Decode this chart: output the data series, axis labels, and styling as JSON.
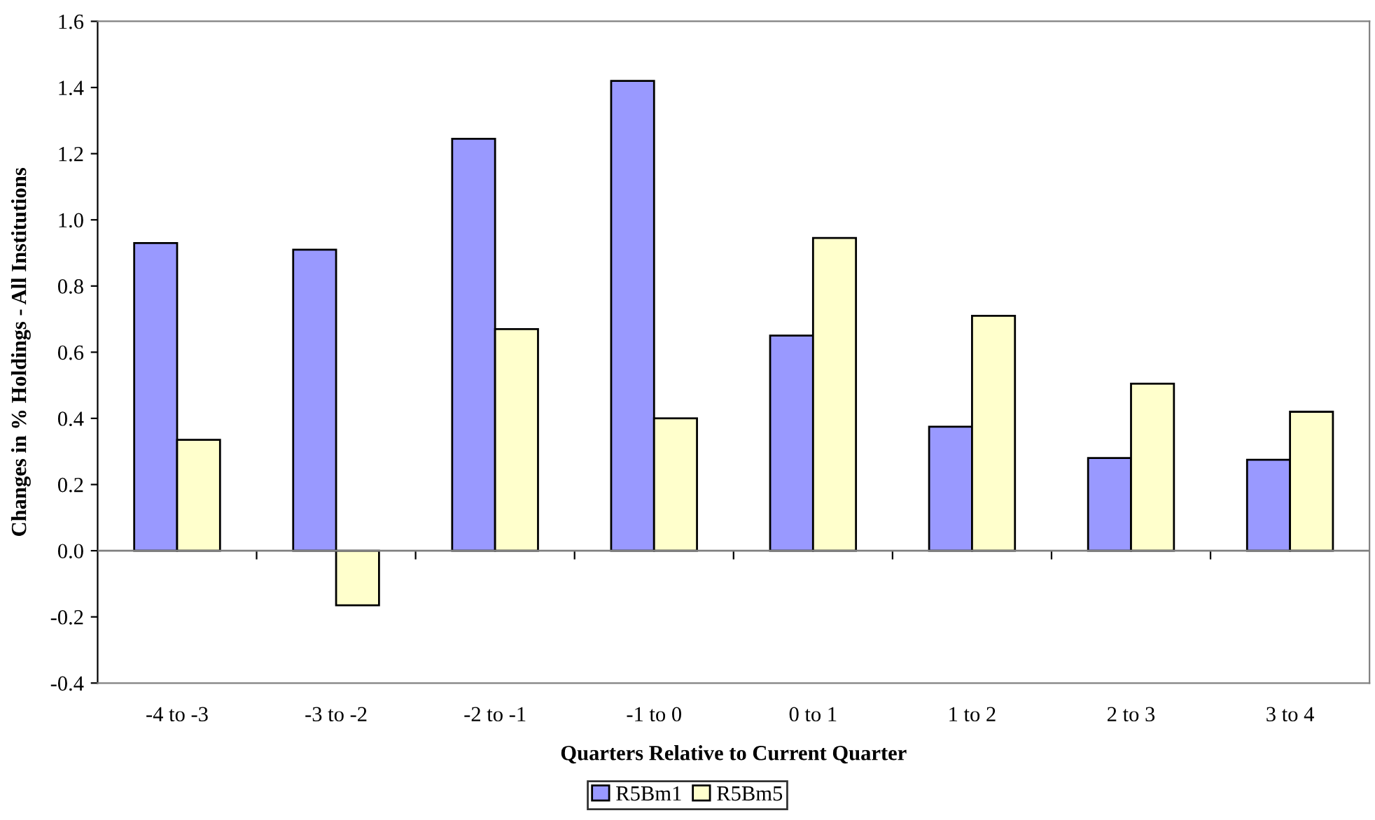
{
  "chart_data": {
    "type": "bar",
    "xlabel": "Quarters Relative to Current Quarter",
    "ylabel": "Changes in % Holdings - All Institutions",
    "categories": [
      "-4 to -3",
      "-3 to -2",
      "-2 to -1",
      "-1 to 0",
      "0 to 1",
      "1 to 2",
      "2 to 3",
      "3 to 4"
    ],
    "series": [
      {
        "name": "R5Bm1",
        "color": "#9999ff",
        "values": [
          0.93,
          0.91,
          1.245,
          1.42,
          0.65,
          0.375,
          0.28,
          0.275
        ]
      },
      {
        "name": "R5Bm5",
        "color": "#ffffcc",
        "values": [
          0.335,
          -0.165,
          0.67,
          0.4,
          0.945,
          0.71,
          0.505,
          0.42
        ]
      }
    ],
    "ylim": [
      -0.4,
      1.6
    ],
    "yticks": [
      {
        "value": -0.4,
        "label": "-0.4"
      },
      {
        "value": -0.2,
        "label": "-0.2"
      },
      {
        "value": 0,
        "label": "0.0"
      },
      {
        "value": 0.2,
        "label": "0.2"
      },
      {
        "value": 0.4,
        "label": "0.4"
      },
      {
        "value": 0.6,
        "label": "0.6"
      },
      {
        "value": 0.8,
        "label": "0.8"
      },
      {
        "value": 1.0,
        "label": "1.0"
      },
      {
        "value": 1.2,
        "label": "1.2"
      },
      {
        "value": 1.4,
        "label": "1.4"
      },
      {
        "value": 1.6,
        "label": "1.6"
      }
    ],
    "legend": "bottom"
  }
}
